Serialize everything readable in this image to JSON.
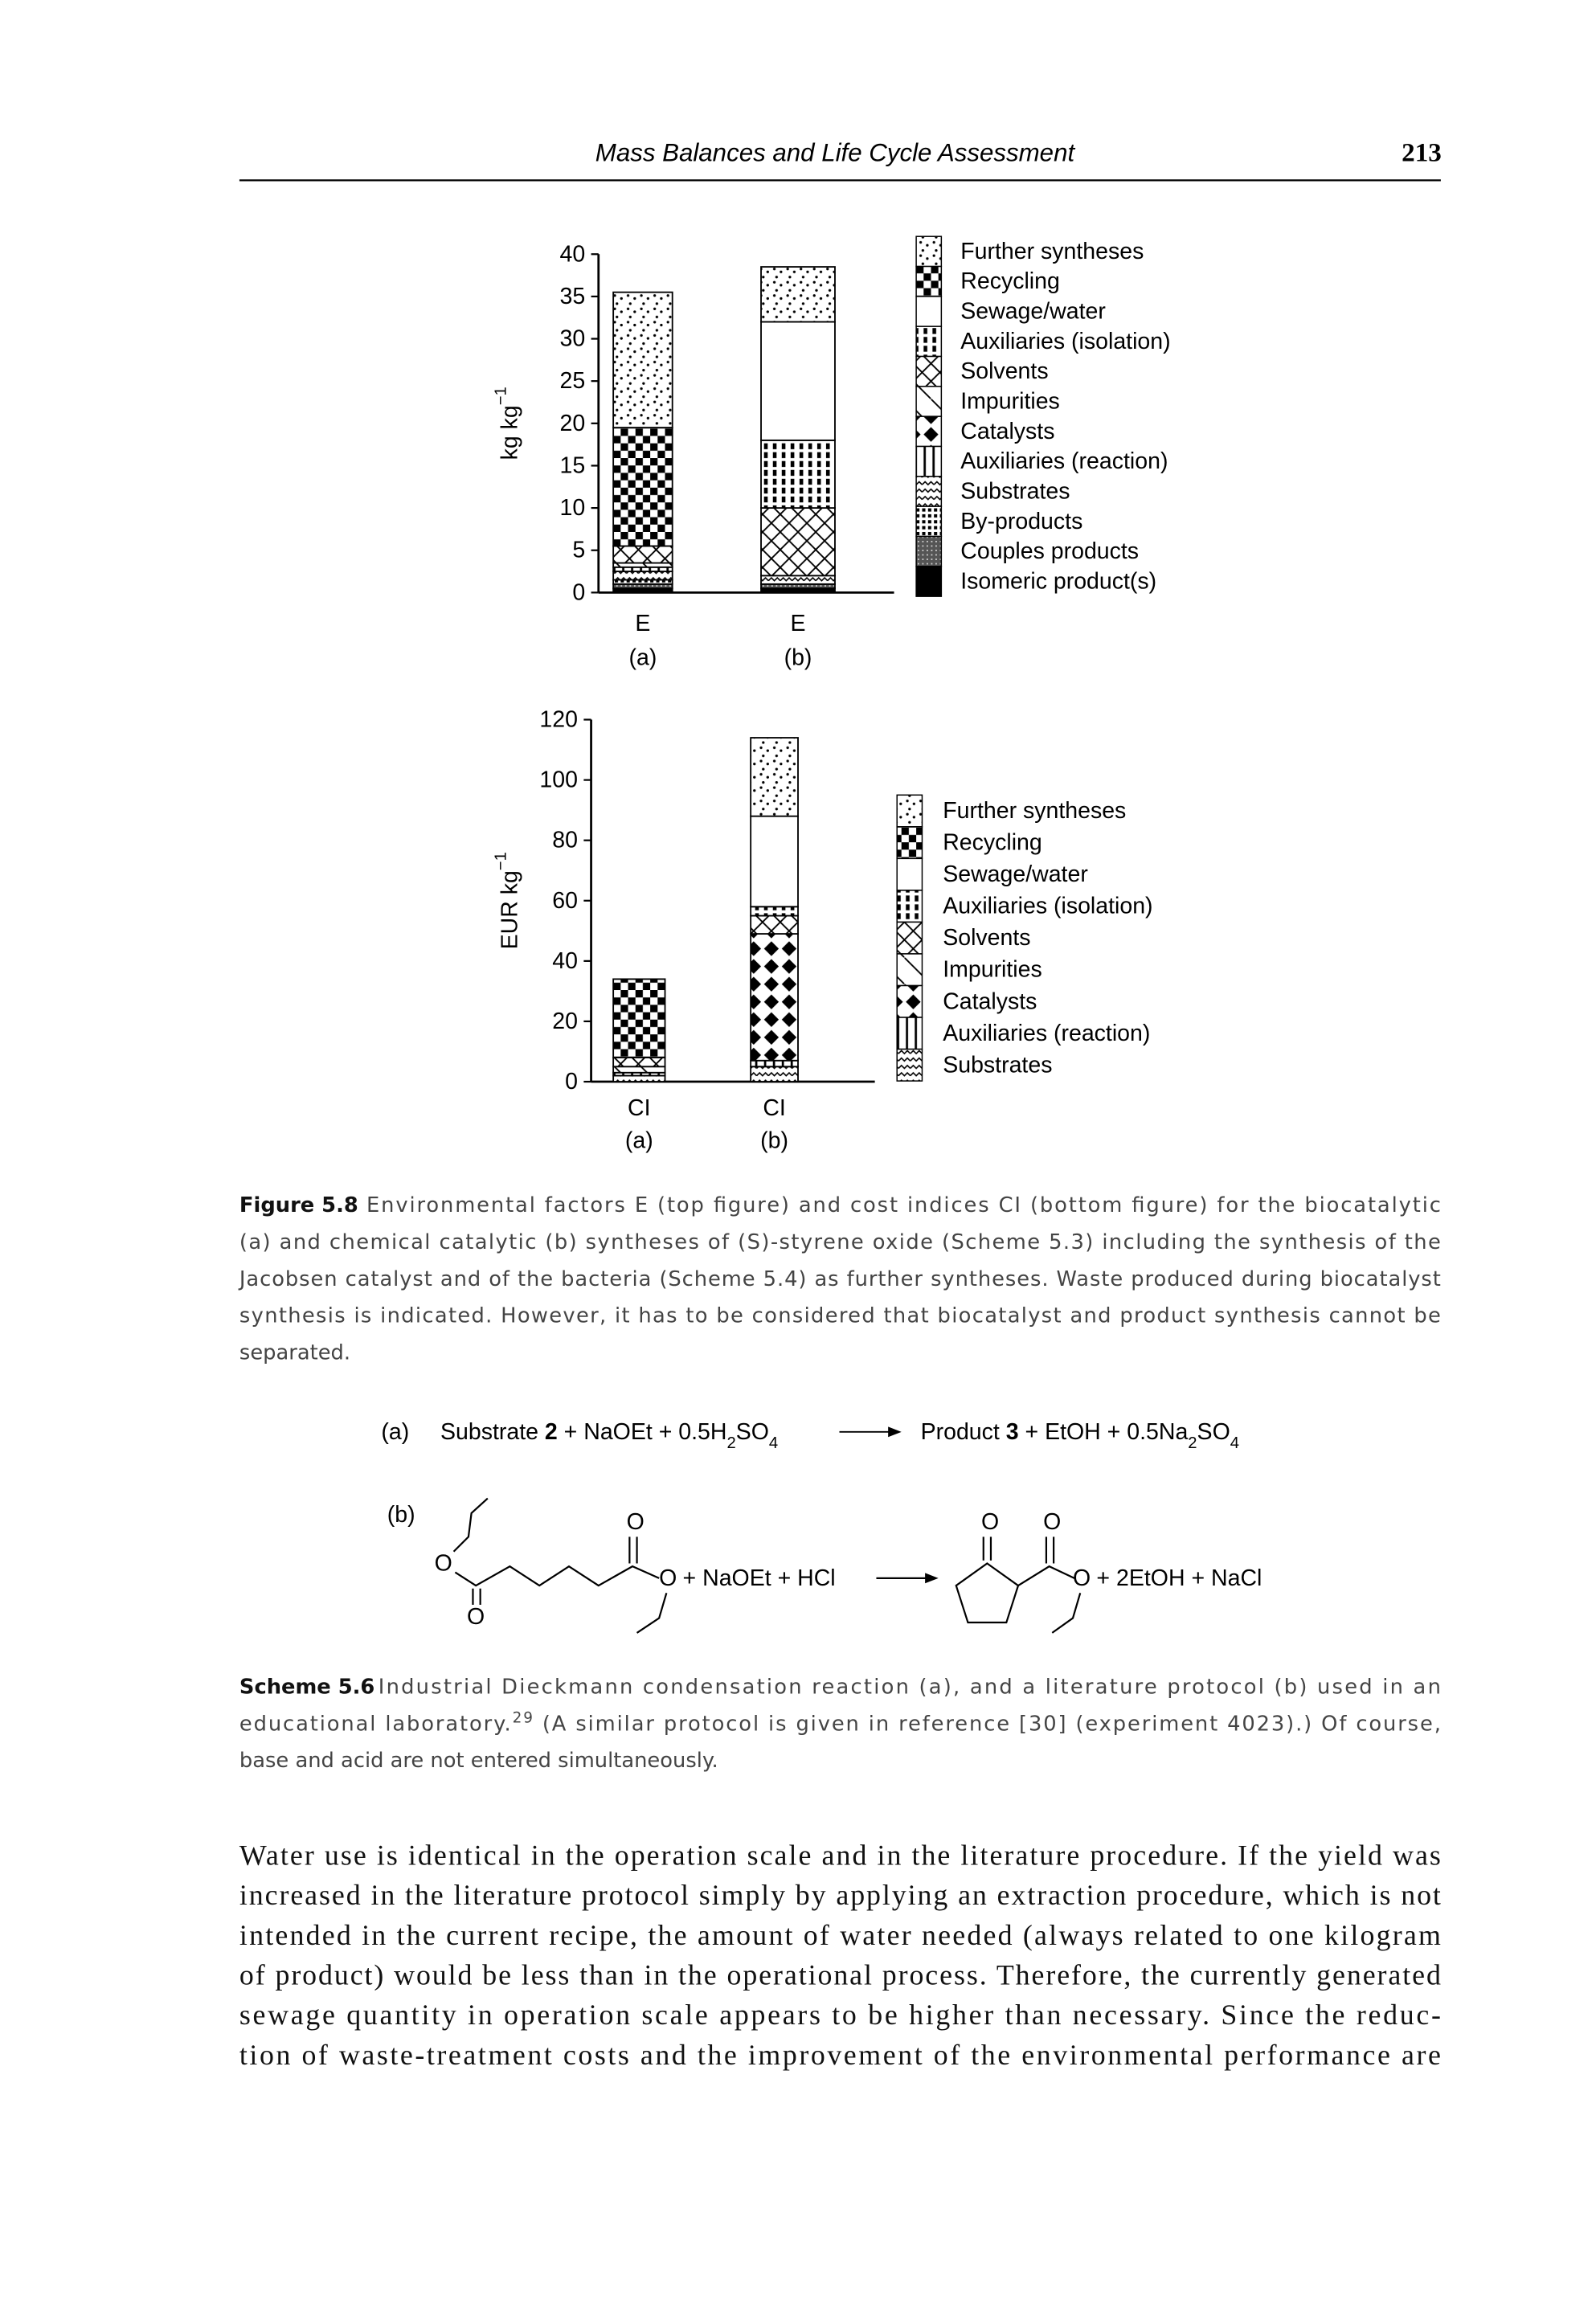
{
  "header": {
    "title": "Mass Balances and Life Cycle Assessment",
    "page": "213"
  },
  "chart_data": [
    {
      "type": "stacked_bar",
      "ylabel": {
        "text": "kg kg",
        "sup": "−1"
      },
      "categories": [
        [
          "E",
          "(a)"
        ],
        [
          "E",
          "(b)"
        ]
      ],
      "ylim": [
        0,
        40
      ],
      "yticks": [
        0,
        5,
        10,
        15,
        20,
        25,
        30,
        35,
        40
      ],
      "series": [
        {
          "name": "Further syntheses",
          "values": [
            16,
            6.5
          ]
        },
        {
          "name": "Recycling",
          "values": [
            14,
            0
          ]
        },
        {
          "name": "Sewage/water",
          "values": [
            0,
            14
          ]
        },
        {
          "name": "Auxiliaries (isolation)",
          "values": [
            0,
            8
          ]
        },
        {
          "name": "Solvents",
          "values": [
            2,
            8
          ]
        },
        {
          "name": "Impurities",
          "values": [
            0.5,
            0
          ]
        },
        {
          "name": "Catalysts",
          "values": [
            0,
            0
          ]
        },
        {
          "name": "Auxiliaries (reaction)",
          "values": [
            0.5,
            0
          ]
        },
        {
          "name": "Substrates",
          "values": [
            1,
            1
          ]
        },
        {
          "name": "By-products",
          "values": [
            0.5,
            0
          ]
        },
        {
          "name": "Couples products",
          "values": [
            0.5,
            0.5
          ]
        },
        {
          "name": "Isomeric product(s)",
          "values": [
            0.5,
            0.5
          ]
        }
      ]
    },
    {
      "type": "stacked_bar",
      "ylabel": {
        "text": "EUR kg",
        "sup": "−1"
      },
      "categories": [
        [
          "CI",
          "(a)"
        ],
        [
          "CI",
          "(b)"
        ]
      ],
      "ylim": [
        0,
        120
      ],
      "yticks": [
        0,
        20,
        40,
        60,
        80,
        100,
        120
      ],
      "series": [
        {
          "name": "Further syntheses",
          "values": [
            0,
            26
          ]
        },
        {
          "name": "Recycling",
          "values": [
            26,
            0
          ]
        },
        {
          "name": "Sewage/water",
          "values": [
            0,
            30
          ]
        },
        {
          "name": "Auxiliaries (isolation)",
          "values": [
            0,
            3
          ]
        },
        {
          "name": "Solvents",
          "values": [
            3,
            6
          ]
        },
        {
          "name": "Impurities",
          "values": [
            2,
            0
          ]
        },
        {
          "name": "Catalysts",
          "values": [
            0,
            42
          ]
        },
        {
          "name": "Auxiliaries (reaction)",
          "values": [
            1,
            2
          ]
        },
        {
          "name": "Substrates",
          "values": [
            2,
            5
          ]
        }
      ]
    }
  ],
  "figure_caption": {
    "label": "Figure 5.8",
    "lines": [
      "Environmental factors E (top figure) and cost indices CI (bottom figure) for the biocatalytic",
      "(a) and chemical catalytic (b) syntheses of (S)-styrene oxide (Scheme 5.3) including the synthesis of the",
      "Jacobsen catalyst and of the bacteria (Scheme 5.4) as further syntheses. Waste produced during biocatalyst",
      "synthesis is indicated. However, it has to be considered that biocatalyst and product synthesis cannot be",
      "separated."
    ]
  },
  "scheme_a": {
    "label": "(a)",
    "lhs": [
      "Substrate ",
      "2",
      " + NaOEt + 0.5H",
      "2",
      "SO",
      "4"
    ],
    "rhs": [
      "Product ",
      "3",
      " + EtOH + 0.5Na",
      "2",
      "SO",
      "4"
    ]
  },
  "scheme_b": {
    "label": "(b)",
    "atom": "O",
    "reagents": "+ NaOEt + HCl",
    "products": "+ 2EtOH + NaCl"
  },
  "scheme_caption": {
    "label": "Scheme 5.6",
    "line0": "Industrial Dieckmann condensation reaction (a), and a literature protocol (b) used in an",
    "line1": [
      "educational laboratory.",
      "29",
      " (A similar protocol is given in reference [30] (experiment 4023).) Of course,"
    ],
    "line2": "base and acid are not entered simultaneously."
  },
  "body": [
    "Water use is identical in the operation scale and in the literature procedure. If the yield was",
    "increased in the literature protocol simply by applying an extraction procedure, which is not",
    "intended in the current recipe, the amount of water needed (always related to one kilogram",
    "of product) would be less than in the operational process. Therefore, the currently generated",
    "sewage quantity in operation scale appears to be higher than necessary. Since the reduc-",
    "tion of waste-treatment costs and the improvement of the environmental performance are"
  ]
}
